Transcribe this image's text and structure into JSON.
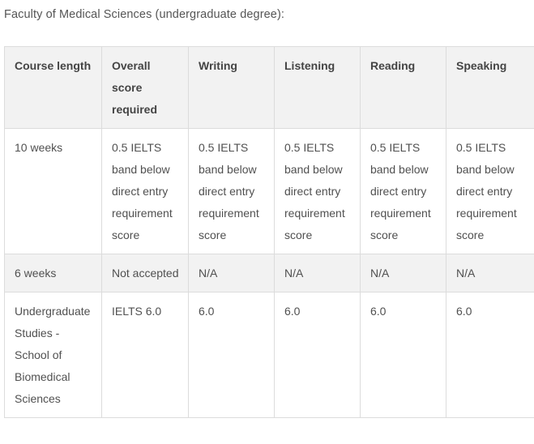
{
  "caption": "Faculty of Medical Sciences (undergraduate degree):",
  "table": {
    "headers": [
      "Course length",
      "Overall score required",
      "Writing",
      "Listening",
      "Reading",
      "Speaking"
    ],
    "rows": [
      {
        "course_length": "10 weeks",
        "overall": "0.5 IELTS band below direct entry requirement score",
        "writing": "0.5 IELTS band below direct entry requirement score",
        "listening": "0.5 IELTS band below direct entry requirement score",
        "reading": "0.5 IELTS band below direct entry requirement score",
        "speaking": "0.5 IELTS band below direct entry requirement score"
      },
      {
        "course_length": "6 weeks",
        "overall": "Not accepted",
        "writing": "N/A",
        "listening": "N/A",
        "reading": "N/A",
        "speaking": "N/A"
      },
      {
        "course_length": "Undergraduate Studies - School of Biomedical Sciences",
        "overall": "IELTS 6.0",
        "writing": "6.0",
        "listening": "6.0",
        "reading": "6.0",
        "speaking": "6.0"
      }
    ]
  },
  "colors": {
    "header_background": "#f2f2f2",
    "border": "#dcdcdc",
    "text": "#505050"
  }
}
